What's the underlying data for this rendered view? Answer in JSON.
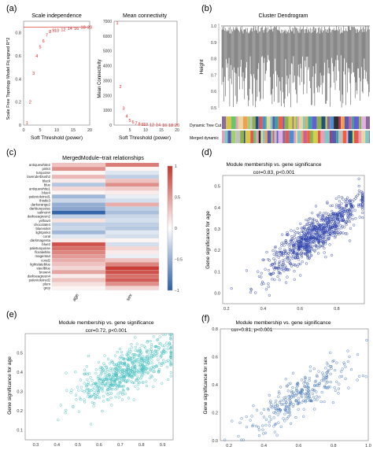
{
  "panel_labels": [
    "(a)",
    "(b)",
    "(c)",
    "(d)",
    "(e)",
    "(f)"
  ],
  "chart_data": [
    {
      "panel": "(a)",
      "type": "scatter",
      "title": "Scale independence",
      "xlabel": "Soft Threshold (power)",
      "ylabel": "Scale Free Topology Model Fit,signed R^2",
      "xlim": [
        0,
        20
      ],
      "ylim": [
        0,
        0.9
      ],
      "xticks": [
        "0",
        "5",
        "10",
        "15",
        "20"
      ],
      "yticks": [
        "0",
        "0.2",
        "0.4",
        "0.6",
        "0.8"
      ],
      "reference_line_y": 0.85,
      "points": [
        {
          "x": 1,
          "y": 0.02,
          "label": "1"
        },
        {
          "x": 2,
          "y": 0.2,
          "label": "2"
        },
        {
          "x": 3,
          "y": 0.45,
          "label": "3"
        },
        {
          "x": 4,
          "y": 0.6,
          "label": "4"
        },
        {
          "x": 5,
          "y": 0.68,
          "label": "5"
        },
        {
          "x": 6,
          "y": 0.73,
          "label": "6"
        },
        {
          "x": 7,
          "y": 0.78,
          "label": "7"
        },
        {
          "x": 8,
          "y": 0.81,
          "label": "8"
        },
        {
          "x": 9,
          "y": 0.82,
          "label": "9"
        },
        {
          "x": 10,
          "y": 0.82,
          "label": "10"
        },
        {
          "x": 12,
          "y": 0.83,
          "label": "12"
        },
        {
          "x": 14,
          "y": 0.84,
          "label": "14"
        },
        {
          "x": 16,
          "y": 0.84,
          "label": "16"
        },
        {
          "x": 18,
          "y": 0.85,
          "label": "18"
        },
        {
          "x": 20,
          "y": 0.85,
          "label": "20"
        }
      ]
    },
    {
      "panel": "(a)",
      "type": "scatter",
      "title": "Mean connectivity",
      "xlabel": "Soft Threshold (power)",
      "ylabel": "Mean Connectivity",
      "xlim": [
        0,
        20
      ],
      "ylim": [
        0,
        7000
      ],
      "xticks": [
        "5",
        "10",
        "15",
        "20"
      ],
      "yticks": [
        "0",
        "1000",
        "2000",
        "3000",
        "4000",
        "5000",
        "6000",
        "7000"
      ],
      "points": [
        {
          "x": 1,
          "y": 6900,
          "label": "1"
        },
        {
          "x": 2,
          "y": 2600,
          "label": "2"
        },
        {
          "x": 3,
          "y": 1150,
          "label": "3"
        },
        {
          "x": 4,
          "y": 600,
          "label": "4"
        },
        {
          "x": 5,
          "y": 330,
          "label": "5"
        },
        {
          "x": 6,
          "y": 200,
          "label": "6"
        },
        {
          "x": 7,
          "y": 120,
          "label": "7"
        },
        {
          "x": 8,
          "y": 80,
          "label": "8"
        },
        {
          "x": 9,
          "y": 55,
          "label": "9"
        },
        {
          "x": 10,
          "y": 40,
          "label": "10"
        },
        {
          "x": 12,
          "y": 25,
          "label": "12"
        },
        {
          "x": 14,
          "y": 18,
          "label": "14"
        },
        {
          "x": 16,
          "y": 12,
          "label": "16"
        },
        {
          "x": 18,
          "y": 9,
          "label": "18"
        },
        {
          "x": 20,
          "y": 7,
          "label": "20"
        }
      ]
    },
    {
      "panel": "(b)",
      "type": "dendrogram",
      "title": "Cluster Dendrogram",
      "ylabel": "Height",
      "ylim": [
        0.5,
        1.0
      ],
      "yticks": [
        "0.5",
        "0.6",
        "0.7",
        "0.8",
        "0.9",
        "1.0"
      ],
      "row_labels": [
        "Dynamic Tree Cut",
        "Merged dynamic"
      ],
      "strip_colors": [
        "#8b6b9a",
        "#d8c54a",
        "#e05a4f",
        "#4a8fd1",
        "#6bc46b",
        "#e8a0b8",
        "#2f2f2f",
        "#e8d8a0",
        "#7fc8c8",
        "#b03060",
        "#f0a050",
        "#5a5ab0",
        "#a0d070",
        "#d06090",
        "#3fa0a0",
        "#c0c0c0",
        "#f06040",
        "#6060d0",
        "#90b050",
        "#e0b0e0",
        "#205080",
        "#d0d050"
      ]
    },
    {
      "panel": "(c)",
      "type": "heatmap",
      "title": "MergedModule−trait relationships",
      "columns": [
        "age",
        "sex"
      ],
      "rows": [
        "antiquewhite2",
        "pink4",
        "turquoise",
        "lavenderblush2",
        "black",
        "blue",
        "antiquewhite1",
        "blue4",
        "palevioletred1",
        "thistle3",
        "darkorange2",
        "darkturquoise",
        "salmon4",
        "darkseagreen2",
        "yellow4",
        "chocolate4",
        "blueviolet",
        "lightpink4",
        "coral",
        "darkmagenta",
        "blue2",
        "paleturquoise",
        "floralwhite",
        "magenta4",
        "coral2",
        "lightslateblue",
        "steelblue",
        "brown4",
        "darkseagreen4",
        "palevioletred2",
        "plum",
        "grey"
      ],
      "values_age": [
        0.3,
        0.55,
        0.05,
        0.35,
        0.1,
        -0.35,
        0.2,
        0.05,
        -0.45,
        -0.25,
        -0.5,
        -0.55,
        -0.95,
        -0.3,
        0.15,
        -0.3,
        -0.25,
        -0.45,
        -0.15,
        0.1,
        0.85,
        0.7,
        0.6,
        0.5,
        0.4,
        0.3,
        0.2,
        0.45,
        0.1,
        0.3,
        0.15,
        0.05
      ],
      "values_sex": [
        0.65,
        0.05,
        -0.15,
        -0.3,
        0.3,
        0.55,
        0.25,
        0.1,
        -0.1,
        -0.2,
        0.4,
        -0.3,
        -0.4,
        -0.25,
        -0.2,
        -0.3,
        -0.35,
        -0.15,
        -0.2,
        0.05,
        -0.2,
        0.2,
        0.1,
        -0.1,
        0.3,
        0.6,
        0.95,
        0.85,
        0.7,
        0.8,
        0.55,
        0.2
      ],
      "colorbar_ticks": [
        "1",
        "0.5",
        "0",
        "−0.5",
        "−1"
      ],
      "colors": {
        "high": "#c8342c",
        "mid": "#ffffff",
        "low": "#2a5ea8"
      }
    },
    {
      "panel": "(d)",
      "type": "scatter",
      "title": "Module membership vs. gene significance",
      "subtitle": "cor=0.83, p<0.001",
      "xlabel": "",
      "ylabel": "Gene significance for age",
      "xlim": [
        0.18,
        0.95
      ],
      "ylim": [
        -0.05,
        0.55
      ],
      "xticks": [
        "0.2",
        "0.4",
        "0.6",
        "0.8"
      ],
      "yticks": [
        "0.0",
        "0.1",
        "0.2",
        "0.3",
        "0.4",
        "0.5"
      ],
      "color": "#2b3fa8",
      "n_points": 900,
      "trend": {
        "cor": 0.83,
        "x_mean": 0.68,
        "x_sd": 0.13,
        "y_at_xmean": 0.27,
        "slope": 0.62,
        "noise_sd": 0.045
      }
    },
    {
      "panel": "(e)",
      "type": "scatter",
      "title": "Module membership vs. gene significance",
      "subtitle": "cor=0.72, p<0.001",
      "xlabel": "",
      "ylabel": "Gene significance for age",
      "xlim": [
        0.25,
        0.95
      ],
      "ylim": [
        0.05,
        0.6
      ],
      "xticks": [
        "0.3",
        "0.4",
        "0.5",
        "0.6",
        "0.7",
        "0.8",
        "0.9"
      ],
      "yticks": [
        "0.1",
        "0.2",
        "0.3",
        "0.4",
        "0.5"
      ],
      "color": "#3fbcbc",
      "n_points": 650,
      "trend": {
        "cor": 0.72,
        "x_mean": 0.72,
        "x_sd": 0.12,
        "y_at_xmean": 0.4,
        "slope": 0.52,
        "noise_sd": 0.06
      }
    },
    {
      "panel": "(f)",
      "type": "scatter",
      "title": "Module membership vs. gene significance",
      "subtitle": "cor=0.81, p<0.001",
      "xlabel": "",
      "ylabel": "Gene significance for sex",
      "xlim": [
        0.15,
        1.0
      ],
      "ylim": [
        0.0,
        0.8
      ],
      "xticks": [
        "0.2",
        "0.4",
        "0.6",
        "0.8",
        "1.0"
      ],
      "yticks": [
        "0.0",
        "0.2",
        "0.4",
        "0.6",
        "0.8"
      ],
      "color": "#3b6fb5",
      "n_points": 300,
      "trend": {
        "cor": 0.81,
        "x_mean": 0.62,
        "x_sd": 0.15,
        "y_at_xmean": 0.33,
        "slope": 0.72,
        "noise_sd": 0.075
      }
    }
  ]
}
